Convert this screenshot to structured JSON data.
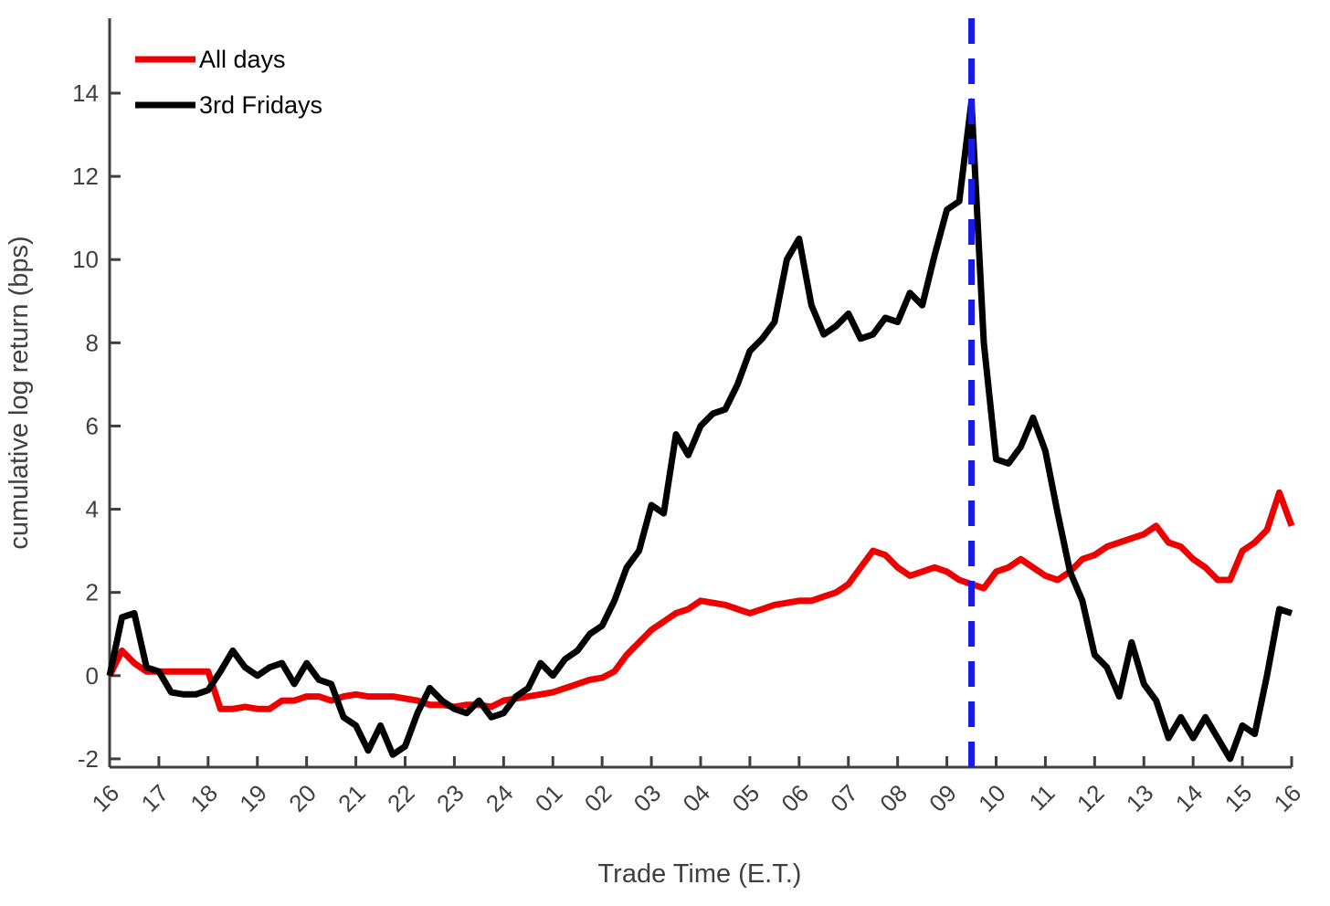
{
  "chart_data": {
    "type": "line",
    "xlabel": "Trade Time (E.T.)",
    "ylabel": "cumulative log return (bps)",
    "x": [
      0,
      0.25,
      0.5,
      0.75,
      1,
      1.25,
      1.5,
      1.75,
      2,
      2.25,
      2.5,
      2.75,
      3,
      3.25,
      3.5,
      3.75,
      4,
      4.25,
      4.5,
      4.75,
      5,
      5.25,
      5.5,
      5.75,
      6,
      6.25,
      6.5,
      6.75,
      7,
      7.25,
      7.5,
      7.75,
      8,
      8.25,
      8.5,
      8.75,
      9,
      9.25,
      9.5,
      9.75,
      10,
      10.25,
      10.5,
      10.75,
      11,
      11.25,
      11.5,
      11.75,
      12,
      12.25,
      12.5,
      12.75,
      13,
      13.25,
      13.5,
      13.75,
      14,
      14.25,
      14.5,
      14.75,
      15,
      15.25,
      15.5,
      15.75,
      16,
      16.25,
      16.5,
      16.75,
      17,
      17.25,
      17.5,
      17.75,
      18,
      18.25,
      18.5,
      18.75,
      19,
      19.25,
      19.5,
      19.75,
      20,
      20.25,
      20.5,
      20.75,
      21,
      21.25,
      21.5,
      21.75,
      22,
      22.25,
      22.5,
      22.75,
      23,
      23.25,
      23.5,
      23.75,
      24
    ],
    "series": [
      {
        "name": "All days",
        "color": "#ee0000",
        "values": [
          0,
          0.6,
          0.3,
          0.1,
          0.1,
          0.1,
          0.1,
          0.1,
          0.1,
          -0.8,
          -0.8,
          -0.75,
          -0.8,
          -0.8,
          -0.6,
          -0.6,
          -0.5,
          -0.5,
          -0.6,
          -0.5,
          -0.45,
          -0.5,
          -0.5,
          -0.5,
          -0.55,
          -0.6,
          -0.7,
          -0.7,
          -0.75,
          -0.7,
          -0.7,
          -0.75,
          -0.6,
          -0.55,
          -0.5,
          -0.45,
          -0.4,
          -0.3,
          -0.2,
          -0.1,
          -0.05,
          0.1,
          0.5,
          0.8,
          1.1,
          1.3,
          1.5,
          1.6,
          1.8,
          1.75,
          1.7,
          1.6,
          1.5,
          1.6,
          1.7,
          1.75,
          1.8,
          1.8,
          1.9,
          2.0,
          2.2,
          2.6,
          3.0,
          2.9,
          2.6,
          2.4,
          2.5,
          2.6,
          2.5,
          2.3,
          2.2,
          2.1,
          2.5,
          2.6,
          2.8,
          2.6,
          2.4,
          2.3,
          2.5,
          2.8,
          2.9,
          3.1,
          3.2,
          3.3,
          3.4,
          3.6,
          3.2,
          3.1,
          2.8,
          2.6,
          2.3,
          2.3,
          3.0,
          3.2,
          3.5,
          4.4,
          3.6
        ]
      },
      {
        "name": "3rd Fridays",
        "color": "#000000",
        "values": [
          0,
          1.4,
          1.5,
          0.2,
          0.1,
          -0.4,
          -0.45,
          -0.45,
          -0.35,
          0.1,
          0.6,
          0.2,
          0.0,
          0.2,
          0.3,
          -0.2,
          0.3,
          -0.1,
          -0.2,
          -1.0,
          -1.2,
          -1.8,
          -1.2,
          -1.9,
          -1.7,
          -0.9,
          -0.3,
          -0.6,
          -0.8,
          -0.9,
          -0.6,
          -1.0,
          -0.9,
          -0.5,
          -0.3,
          0.3,
          0.0,
          0.4,
          0.6,
          1.0,
          1.2,
          1.8,
          2.6,
          3.0,
          4.1,
          3.9,
          5.8,
          5.3,
          6.0,
          6.3,
          6.4,
          7.0,
          7.8,
          8.1,
          8.5,
          10.0,
          10.5,
          8.9,
          8.2,
          8.4,
          8.7,
          8.1,
          8.2,
          8.6,
          8.5,
          9.2,
          8.9,
          10.1,
          11.2,
          11.4,
          13.8,
          8.0,
          5.2,
          5.1,
          5.5,
          6.2,
          5.4,
          3.9,
          2.5,
          1.8,
          0.5,
          0.2,
          -0.5,
          0.8,
          -0.2,
          -0.6,
          -1.5,
          -1.0,
          -1.5,
          -1.0,
          -1.5,
          -2.0,
          -1.2,
          -1.4,
          0.0,
          1.6,
          1.5
        ]
      }
    ],
    "vline": {
      "x": 17.5,
      "color": "#1a1ae6"
    },
    "xlim": [
      0,
      24
    ],
    "xticks": [
      {
        "value": 0,
        "label": "16"
      },
      {
        "value": 1,
        "label": "17"
      },
      {
        "value": 2,
        "label": "18"
      },
      {
        "value": 3,
        "label": "19"
      },
      {
        "value": 4,
        "label": "20"
      },
      {
        "value": 5,
        "label": "21"
      },
      {
        "value": 6,
        "label": "22"
      },
      {
        "value": 7,
        "label": "23"
      },
      {
        "value": 8,
        "label": "24"
      },
      {
        "value": 9,
        "label": "01"
      },
      {
        "value": 10,
        "label": "02"
      },
      {
        "value": 11,
        "label": "03"
      },
      {
        "value": 12,
        "label": "04"
      },
      {
        "value": 13,
        "label": "05"
      },
      {
        "value": 14,
        "label": "06"
      },
      {
        "value": 15,
        "label": "07"
      },
      {
        "value": 16,
        "label": "08"
      },
      {
        "value": 17,
        "label": "09"
      },
      {
        "value": 18,
        "label": "10"
      },
      {
        "value": 19,
        "label": "11"
      },
      {
        "value": 20,
        "label": "12"
      },
      {
        "value": 21,
        "label": "13"
      },
      {
        "value": 22,
        "label": "14"
      },
      {
        "value": 23,
        "label": "15"
      },
      {
        "value": 24,
        "label": "16"
      }
    ],
    "ylim": [
      -2.2,
      15.8
    ],
    "yticks": [
      -2,
      0,
      2,
      4,
      6,
      8,
      10,
      12,
      14
    ],
    "legend": "upper-left",
    "grid": false
  }
}
